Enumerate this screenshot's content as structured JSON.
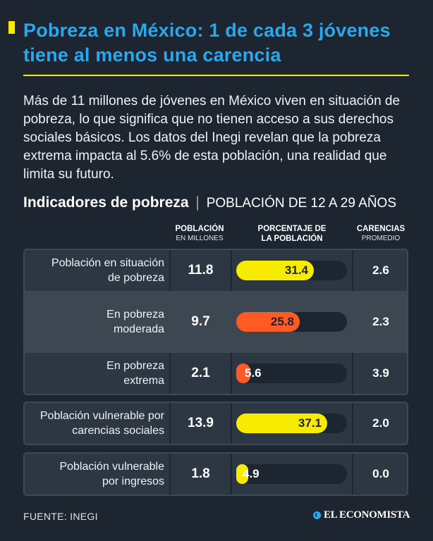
{
  "header": {
    "title": "Pobreza en México: 1 de cada 3 jóvenes tiene al menos una carencia",
    "intro": "Más de 11 millones de jóvenes en México viven en situación de pobreza, lo que significa que no tienen acceso a sus derechos sociales básicos. Los datos del Inegi revelan que la pobreza extrema impacta al 5.6% de esta población, una realidad que limita su futuro.",
    "section_title": "Indicadores de pobreza",
    "section_separator": "|",
    "section_subtitle": "POBLACIÓN DE 12 A 29 AÑOS",
    "accent_color": "#2aa8ee",
    "highlight_color": "#f7eb00"
  },
  "columns": {
    "poblacion": "POBLACIÓN",
    "poblacion_sub": "EN MILLONES",
    "porcentaje_l1": "PORCENTAJE DE",
    "porcentaje_l2": "LA POBLACIÓN",
    "carencias": "CARENCIAS",
    "carencias_sub": "PROMEDIO"
  },
  "chart_data": {
    "type": "bar",
    "categories": [
      "Población en situación de pobreza",
      "En pobreza moderada",
      "En pobreza extrema",
      "Población vulnerable por carencias sociales",
      "Población vulnerable por ingresos"
    ],
    "series": [
      {
        "name": "PORCENTAJE DE LA POBLACIÓN",
        "values": [
          31.4,
          25.8,
          5.6,
          37.1,
          4.9
        ]
      }
    ],
    "poblacion": [
      11.8,
      9.7,
      2.1,
      13.9,
      1.8
    ],
    "carencias": [
      2.6,
      2.3,
      3.9,
      2.0,
      0.0
    ],
    "bar_colors": [
      "#f7eb00",
      "#ff5a24",
      "#ff5a24",
      "#f7eb00",
      "#f7eb00"
    ],
    "ylim": [
      0,
      45
    ],
    "rows": [
      {
        "label_l1": "Población en situación",
        "label_l2": "de pobreza",
        "poblacion": "11.8",
        "porcentaje": "31.4",
        "carencias": "2.6"
      },
      {
        "label_l1": "En pobreza",
        "label_l2": "moderada",
        "poblacion": "9.7",
        "porcentaje": "25.8",
        "carencias": "2.3"
      },
      {
        "label_l1": "En pobreza",
        "label_l2": "extrema",
        "poblacion": "2.1",
        "porcentaje": "5.6",
        "carencias": "3.9"
      },
      {
        "label_l1": "Población vulnerable por",
        "label_l2": "carencias sociales",
        "poblacion": "13.9",
        "porcentaje": "37.1",
        "carencias": "2.0"
      },
      {
        "label_l1": "Población vulnerable",
        "label_l2": "por ingresos",
        "poblacion": "1.8",
        "porcentaje": "4.9",
        "carencias": "0.0"
      }
    ]
  },
  "footer": {
    "source": "FUENTE: INEGI",
    "brand": "EL ECONOMISTA"
  }
}
